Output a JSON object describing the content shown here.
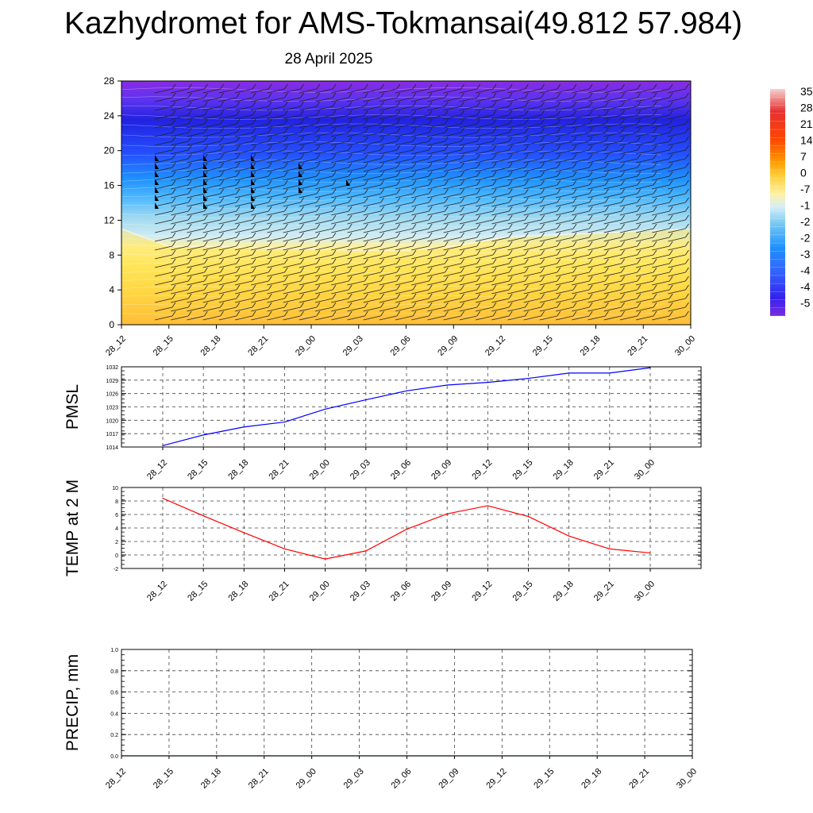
{
  "header": {
    "title": "Kazhydromet for AMS-Tokmansai(49.812 57.984)",
    "subtitle": "28 April 2025"
  },
  "time_labels": [
    "28_12",
    "28_15",
    "28_18",
    "28_21",
    "29_00",
    "29_03",
    "29_06",
    "29_09",
    "29_12",
    "29_15",
    "29_18",
    "29_21",
    "30_00"
  ],
  "chart_data": [
    {
      "type": "heatmap",
      "title": "Kazhydromet for AMS-Tokmansai(49.812 57.984)",
      "subtitle": "28 April 2025",
      "description_of_content": "",
      "x": [
        "28_12",
        "28_15",
        "28_18",
        "28_21",
        "29_00",
        "29_03",
        "29_06",
        "29_09",
        "29_12",
        "29_15",
        "29_18",
        "29_21",
        "30_00"
      ],
      "y_ticks": [
        0,
        4,
        8,
        12,
        16,
        20,
        24,
        28
      ],
      "ylim": [
        0,
        28
      ],
      "colorbar_labels": [
        "35",
        "28",
        "21",
        "14",
        "7",
        "0",
        "-7",
        "-1",
        "-2",
        "-2",
        "-3",
        "-4",
        "-4",
        "-5"
      ],
      "freezing_level": [
        11,
        9,
        9,
        8.8,
        8.7,
        8.5,
        8.5,
        9,
        10,
        10.3,
        10.5,
        10.8,
        11
      ],
      "wind_barbs": true
    },
    {
      "type": "line",
      "ylabel": "PMSL",
      "ylim": [
        1014,
        1032
      ],
      "y_ticks": [
        1014,
        1017,
        1020,
        1023,
        1026,
        1029,
        1032
      ],
      "x": [
        "28_12",
        "28_15",
        "28_18",
        "28_21",
        "29_00",
        "29_03",
        "29_06",
        "29_09",
        "29_12",
        "29_15",
        "29_18",
        "29_21",
        "30_00"
      ],
      "series": [
        {
          "values": [
            1014.3,
            1016.7,
            1018.5,
            1019.6,
            1022.5,
            1024.6,
            1026.6,
            1027.9,
            1028.5,
            1029.4,
            1030.6,
            1030.6,
            1031.8
          ],
          "color": "#0000ff"
        }
      ],
      "grid": true
    },
    {
      "type": "line",
      "ylabel": "TEMP at 2 M",
      "ylim": [
        -2,
        10
      ],
      "y_ticks": [
        -2,
        0,
        2,
        4,
        6,
        8,
        10
      ],
      "x": [
        "28_12",
        "28_15",
        "28_18",
        "28_21",
        "29_00",
        "29_03",
        "29_06",
        "29_09",
        "29_12",
        "29_15",
        "29_18",
        "29_21",
        "30_00"
      ],
      "series": [
        {
          "values": [
            8.4,
            5.8,
            3.3,
            0.9,
            -0.6,
            0.6,
            3.8,
            6.1,
            7.3,
            5.7,
            2.8,
            0.9,
            0.3
          ],
          "color": "#ff0000"
        }
      ],
      "grid": true
    },
    {
      "type": "line",
      "ylabel": "PRECIP, mm",
      "ylim": [
        0.0,
        1.0
      ],
      "y_ticks": [
        "0.0",
        "0.2",
        "0.4",
        "0.6",
        "0.8",
        "1.0"
      ],
      "x": [
        "28_12",
        "28_15",
        "28_18",
        "28_21",
        "29_00",
        "29_03",
        "29_06",
        "29_09",
        "29_12",
        "29_15",
        "29_18",
        "29_21",
        "30_00"
      ],
      "series": [
        {
          "values": [
            0,
            0,
            0,
            0,
            0,
            0,
            0,
            0,
            0,
            0,
            0,
            0,
            0
          ],
          "color": "#006400"
        }
      ],
      "grid": true
    }
  ]
}
